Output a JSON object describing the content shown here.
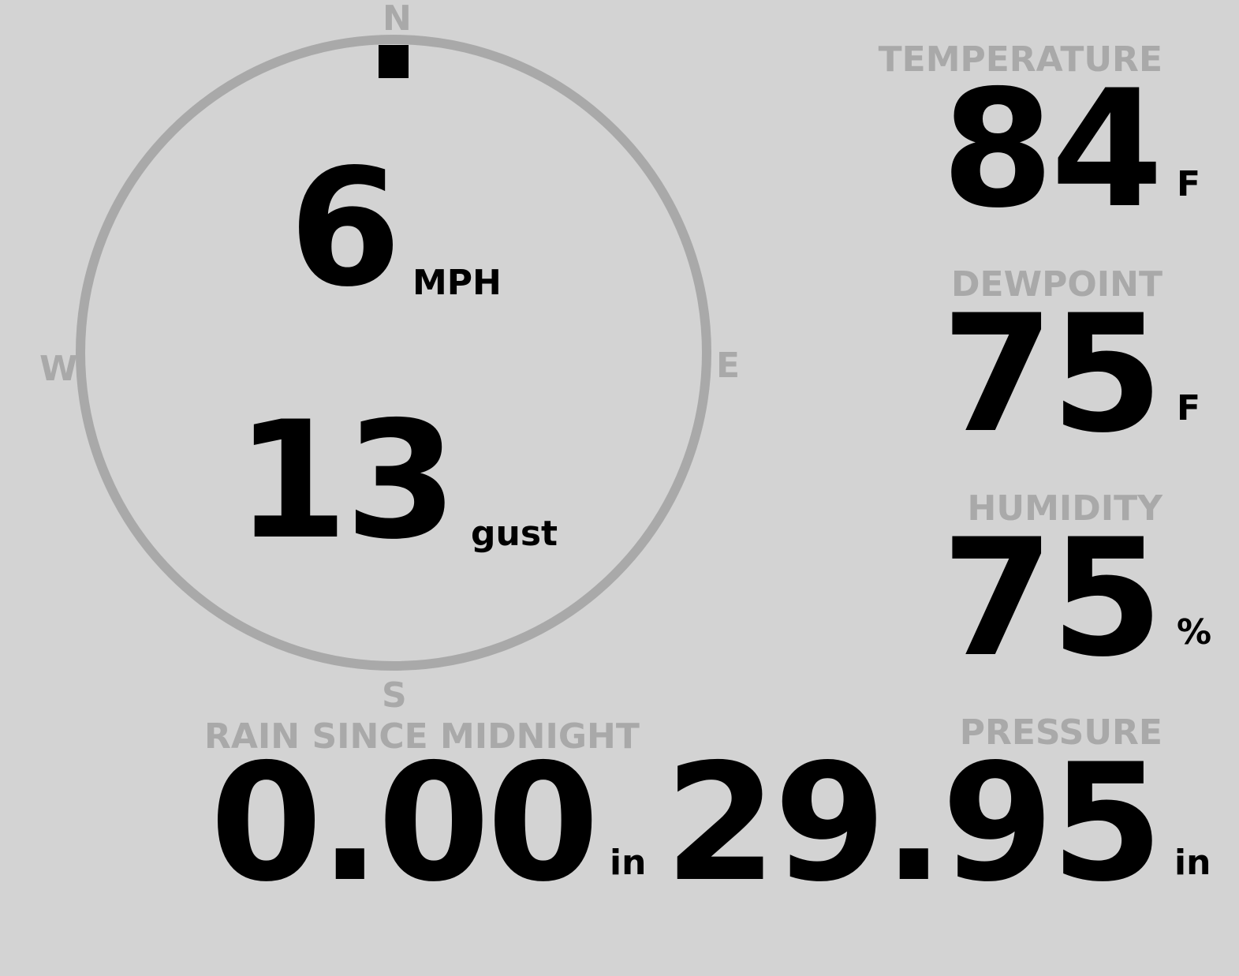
{
  "wind": {
    "compass": {
      "north": "N",
      "east": "E",
      "south": "S",
      "west": "W"
    },
    "direction_deg": 0,
    "speed": "6",
    "speed_unit": "MPH",
    "gust": "13",
    "gust_unit": "gust"
  },
  "temperature": {
    "label": "TEMPERATURE",
    "value": "84",
    "unit": "F"
  },
  "dewpoint": {
    "label": "DEWPOINT",
    "value": "75",
    "unit": "F"
  },
  "humidity": {
    "label": "HUMIDITY",
    "value": "75",
    "unit": "%"
  },
  "rain": {
    "label": "RAIN SINCE MIDNIGHT",
    "value": "0.00",
    "unit": "in"
  },
  "pressure": {
    "label": "PRESSURE",
    "value": "29.95",
    "unit": "in"
  },
  "colors": {
    "background": "#d3d3d3",
    "muted": "#a9a9a9",
    "text": "#000000"
  }
}
